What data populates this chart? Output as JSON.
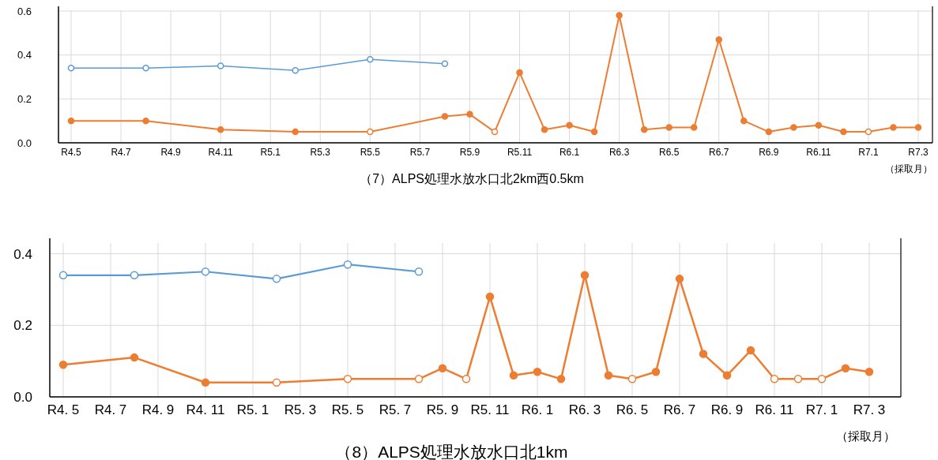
{
  "chart_data": [
    {
      "type": "line",
      "title": "（7）ALPS処理水放水口北2km西0.5km",
      "xlabel": "（採取月）",
      "grid": true,
      "marker": "circle",
      "line_style": "solid",
      "categories": [
        "R4.5",
        null,
        "R4.7",
        null,
        "R4.9",
        null,
        "R4.11",
        null,
        "R5.1",
        null,
        "R5.3",
        null,
        "R5.5",
        null,
        "R5.7",
        null,
        "R5.9",
        null,
        "R5.11",
        null,
        "R6.1",
        null,
        "R6.3",
        null,
        "R6.5",
        null,
        "R6.7",
        null,
        "R6.9",
        null,
        "R6.11",
        null,
        "R7.1",
        null,
        "R7.3"
      ],
      "ylim": [
        0,
        0.6
      ],
      "yticks": [
        {
          "value": 0,
          "label": "0.0"
        },
        {
          "value": 0.2,
          "label": "0.2"
        },
        {
          "value": 0.4,
          "label": "0.4"
        },
        {
          "value": 0.6,
          "label": "0.6"
        }
      ],
      "series": [
        {
          "color": "#5b9bd5",
          "values": [
            0.34,
            null,
            null,
            0.34,
            null,
            null,
            0.35,
            null,
            null,
            0.33,
            null,
            null,
            0.38,
            null,
            null,
            0.36,
            null,
            null,
            null,
            null,
            null,
            null,
            null,
            null,
            null,
            null,
            null,
            null,
            null,
            null,
            null,
            null,
            null,
            null,
            null
          ],
          "colors": [
            "#ffffff",
            null,
            null,
            "#ffffff",
            null,
            null,
            "#ffffff",
            null,
            null,
            "#ffffff",
            null,
            null,
            "#ffffff",
            null,
            null,
            "#ffffff",
            null,
            null,
            null,
            null,
            null,
            null,
            null,
            null,
            null,
            null,
            null,
            null,
            null,
            null,
            null,
            null,
            null,
            null,
            null
          ]
        },
        {
          "color": "#ed7d31",
          "values": [
            0.1,
            null,
            null,
            0.1,
            null,
            null,
            0.06,
            null,
            null,
            0.05,
            null,
            null,
            0.05,
            null,
            null,
            0.12,
            0.13,
            0.05,
            0.32,
            0.06,
            0.08,
            0.05,
            0.58,
            0.06,
            0.07,
            0.07,
            0.47,
            0.1,
            0.05,
            0.07,
            0.08,
            0.05,
            0.05,
            0.07,
            0.07
          ],
          "colors": [
            "#ed7d31",
            null,
            null,
            "#ed7d31",
            null,
            null,
            "#ed7d31",
            null,
            null,
            "#ed7d31",
            null,
            null,
            "#ffffff",
            null,
            null,
            "#ed7d31",
            "#ed7d31",
            "#ffffff",
            "#ed7d31",
            "#ed7d31",
            "#ed7d31",
            "#ed7d31",
            "#ed7d31",
            "#ed7d31",
            "#ed7d31",
            "#ed7d31",
            "#ed7d31",
            "#ed7d31",
            "#ed7d31",
            "#ed7d31",
            "#ed7d31",
            "#ed7d31",
            "#ffffff",
            "#ed7d31",
            "#ed7d31"
          ]
        }
      ]
    },
    {
      "type": "line",
      "title": "（8）ALPS処理水放水口北1km",
      "xlabel": "（採取月）",
      "grid": true,
      "marker": "circle",
      "line_style": "solid",
      "categories": [
        "R4. 5",
        null,
        "R4. 7",
        null,
        "R4. 9",
        null,
        "R4. 11",
        null,
        "R5. 1",
        null,
        "R5. 3",
        null,
        "R5. 5",
        null,
        "R5. 7",
        null,
        "R5. 9",
        null,
        "R5. 11",
        null,
        "R6. 1",
        null,
        "R6. 3",
        null,
        "R6. 5",
        null,
        "R6. 7",
        null,
        "R6. 9",
        null,
        "R6. 11",
        null,
        "R7. 1",
        null,
        "R7. 3"
      ],
      "ylim": [
        0,
        0.43
      ],
      "yticks": [
        {
          "value": 0,
          "label": "0.0"
        },
        {
          "value": 0.2,
          "label": "0.2"
        },
        {
          "value": 0.4,
          "label": "0.4"
        }
      ],
      "series": [
        {
          "color": "#5b9bd5",
          "values": [
            0.34,
            null,
            null,
            0.34,
            null,
            null,
            0.35,
            null,
            null,
            0.33,
            null,
            null,
            0.37,
            null,
            null,
            0.35,
            null,
            null,
            null,
            null,
            null,
            null,
            null,
            null,
            null,
            null,
            null,
            null,
            null,
            null,
            null,
            null,
            null,
            null,
            null
          ],
          "colors": [
            "#ffffff",
            null,
            null,
            "#ffffff",
            null,
            null,
            "#ffffff",
            null,
            null,
            "#ffffff",
            null,
            null,
            "#ffffff",
            null,
            null,
            "#ffffff",
            null,
            null,
            null,
            null,
            null,
            null,
            null,
            null,
            null,
            null,
            null,
            null,
            null,
            null,
            null,
            null,
            null,
            null,
            null
          ]
        },
        {
          "color": "#ed7d31",
          "values": [
            0.09,
            null,
            null,
            0.11,
            null,
            null,
            0.04,
            null,
            null,
            0.04,
            null,
            null,
            0.05,
            null,
            null,
            0.05,
            0.08,
            0.05,
            0.28,
            0.06,
            0.07,
            0.05,
            0.34,
            0.06,
            0.05,
            0.07,
            0.33,
            0.12,
            0.06,
            0.13,
            0.05,
            0.05,
            0.05,
            0.08,
            0.07
          ],
          "colors": [
            "#ed7d31",
            null,
            null,
            "#ed7d31",
            null,
            null,
            "#ed7d31",
            null,
            null,
            "#ffffff",
            null,
            null,
            "#ffffff",
            null,
            null,
            "#ffffff",
            "#ed7d31",
            "#ffffff",
            "#ed7d31",
            "#ed7d31",
            "#ed7d31",
            "#ed7d31",
            "#ed7d31",
            "#ed7d31",
            "#ffffff",
            "#ed7d31",
            "#ed7d31",
            "#ed7d31",
            "#ed7d31",
            "#ed7d31",
            "#ffffff",
            "#ffffff",
            "#ffffff",
            "#ed7d31",
            "#ed7d31"
          ]
        }
      ]
    }
  ]
}
